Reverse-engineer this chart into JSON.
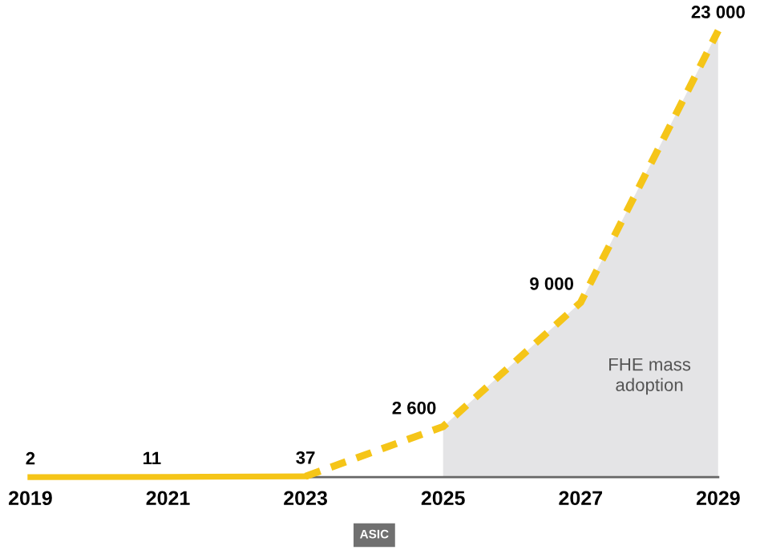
{
  "chart_data": {
    "type": "line",
    "series": [
      {
        "type": "area",
        "name": "FHE mass adoption",
        "color": "#e4e4e6",
        "x": [
          2025,
          2027,
          2029
        ],
        "values": [
          2600,
          9000,
          23000
        ]
      },
      {
        "color": "#f5c518",
        "line_style": "solid",
        "x": [
          2019,
          2021,
          2023
        ],
        "values": [
          2,
          11,
          37
        ],
        "value_labels": [
          "2",
          "11",
          "37"
        ]
      },
      {
        "color": "#f5c518",
        "line_style": "dashed",
        "x": [
          2023,
          2025,
          2027,
          2029
        ],
        "values": [
          37,
          2600,
          9000,
          23000
        ],
        "value_labels": [
          null,
          "2 600",
          "9 000",
          "23 000"
        ]
      }
    ],
    "xlim": [
      2019,
      2029
    ],
    "xticks": [
      2019,
      2021,
      2023,
      2025,
      2027,
      2029
    ],
    "tick_labels": "x",
    "annotations": [
      "ASIC"
    ],
    "grid": false,
    "legend": false,
    "marker": "none"
  }
}
